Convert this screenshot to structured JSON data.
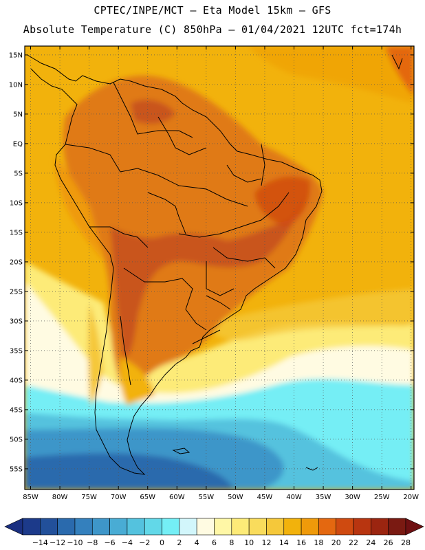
{
  "header": {
    "line1": "CPTEC/INPE/MCT –  Eta Model 15km – GFS",
    "line2": "Absolute Temperature (C) 850hPa – 01/04/2021 12UTC fct=174h"
  },
  "map": {
    "lat_labels": [
      "15N",
      "10N",
      "5N",
      "EQ",
      "5S",
      "10S",
      "15S",
      "20S",
      "25S",
      "30S",
      "35S",
      "40S",
      "45S",
      "50S",
      "55S"
    ],
    "lon_labels": [
      "85W",
      "80W",
      "75W",
      "70W",
      "65W",
      "60W",
      "55W",
      "50W",
      "45W",
      "40W",
      "35W",
      "30W",
      "25W",
      "20W"
    ]
  },
  "colorbar": {
    "labels": [
      "-14",
      "-12",
      "-10",
      "-8",
      "-6",
      "-4",
      "-2",
      "0",
      "2",
      "4",
      "6",
      "8",
      "10",
      "12",
      "14",
      "16",
      "18",
      "20",
      "22",
      "24",
      "26",
      "28"
    ],
    "colors": [
      "#1c3a8a",
      "#22509a",
      "#2a6aad",
      "#3480bd",
      "#3e96c9",
      "#49acd4",
      "#54c2de",
      "#62d8e8",
      "#74eef5",
      "#d2f6fb",
      "#fffbe2",
      "#fff7a6",
      "#fdeb78",
      "#f9dc5c",
      "#f5c83a",
      "#f2b20c",
      "#ef9a0a",
      "#e46810",
      "#cf4a10",
      "#b83510",
      "#9b2510",
      "#7a1a12"
    ],
    "left_cap_color": "#1a2f80",
    "right_cap_color": "#6e1012"
  },
  "palette": {
    "ocean_warm": "#f2b20c",
    "land_hot": "#e07a14",
    "land_very_hot": "#c9551a",
    "pale_yellow": "#fdeb78",
    "cream": "#fffbe2",
    "light_cyan": "#74eef5",
    "cold_blue": "#3e96c9",
    "deep_blue": "#2a6aad"
  }
}
